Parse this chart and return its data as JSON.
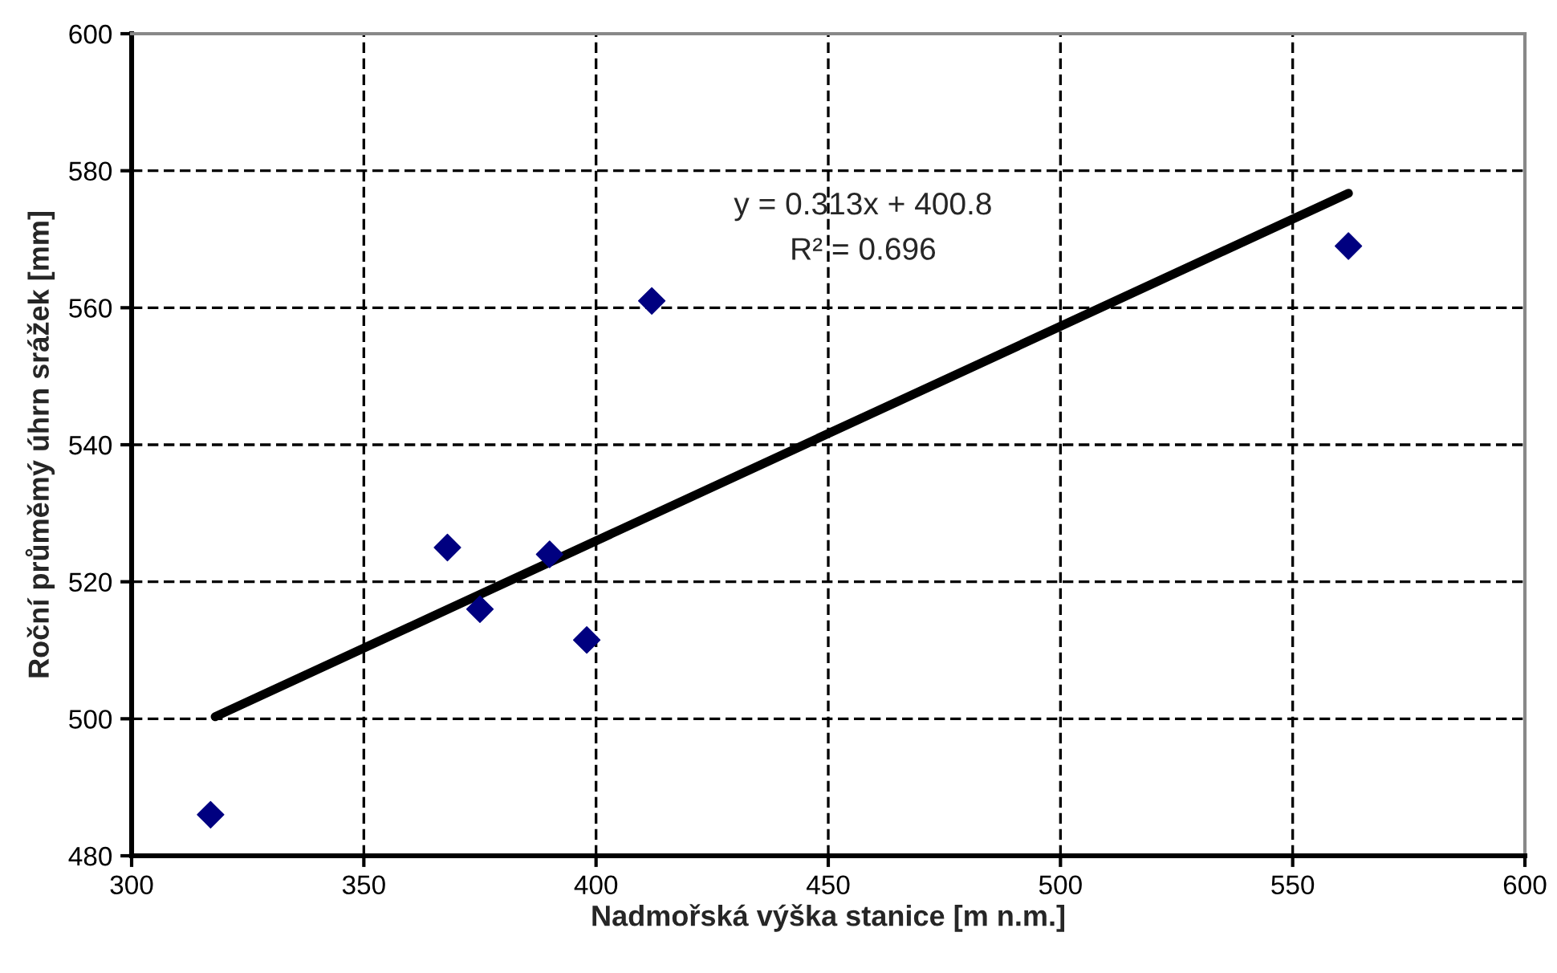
{
  "chart_data": {
    "type": "scatter",
    "xlabel": "Nadmořská výška stanice [m n.m.]",
    "ylabel": "Roční průměmý úhrn srážek [mm]",
    "xlim": [
      300,
      600
    ],
    "xticks": [
      300,
      350,
      400,
      450,
      500,
      550,
      600
    ],
    "ylim": [
      480,
      600
    ],
    "yticks": [
      480,
      500,
      520,
      540,
      560,
      580,
      600
    ],
    "grid": true,
    "marker": "diamond",
    "series": [
      {
        "color": "#000080",
        "x": [
          317,
          368,
          375,
          390,
          398,
          412,
          562
        ],
        "values": [
          486,
          525,
          516,
          524,
          511.5,
          561,
          569
        ]
      },
      {
        "type": "line",
        "color": "#000000",
        "line_style": "solid",
        "marker": "none",
        "x": [
          318,
          562
        ],
        "values": [
          500.3,
          576.7
        ]
      }
    ],
    "annotations": [
      "y = 0.313x + 400.8",
      "R² = 0.696"
    ]
  }
}
